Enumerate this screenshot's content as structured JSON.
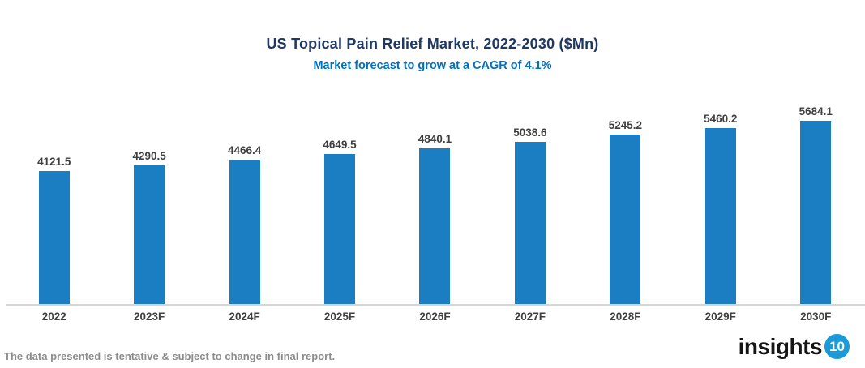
{
  "header": {
    "title": "US Topical Pain Relief Market, 2022-2030 ($Mn)",
    "subtitle": "Market forecast to grow at a CAGR of 4.1%"
  },
  "chart_data": {
    "type": "bar",
    "categories": [
      "2022",
      "2023F",
      "2024F",
      "2025F",
      "2026F",
      "2027F",
      "2028F",
      "2029F",
      "2030F"
    ],
    "values": [
      4121.5,
      4290.5,
      4466.4,
      4649.5,
      4840.1,
      5038.6,
      5245.2,
      5460.2,
      5684.1
    ],
    "title": "US Topical Pain Relief Market, 2022-2030 ($Mn)",
    "subtitle": "Market forecast to grow at a CAGR of 4.1%",
    "xlabel": "",
    "ylabel": "",
    "ylim": [
      0,
      5684.1
    ],
    "grid": false,
    "legend": "none",
    "value_labels": true,
    "bar_color": "#1B7EC3"
  },
  "footer": {
    "disclaimer": "The data presented is tentative & subject to change in final report.",
    "logo_text": "insights",
    "logo_badge": "10"
  },
  "colors": {
    "title": "#1F3864",
    "subtitle": "#0070C0",
    "bar": "#1B7EC3",
    "axis_line": "#D6D6D6",
    "tick_label": "#404040",
    "value_label": "#3F3F3F",
    "disclaimer": "#8C8C8C",
    "logo_badge_bg": "#1B9AD7"
  }
}
